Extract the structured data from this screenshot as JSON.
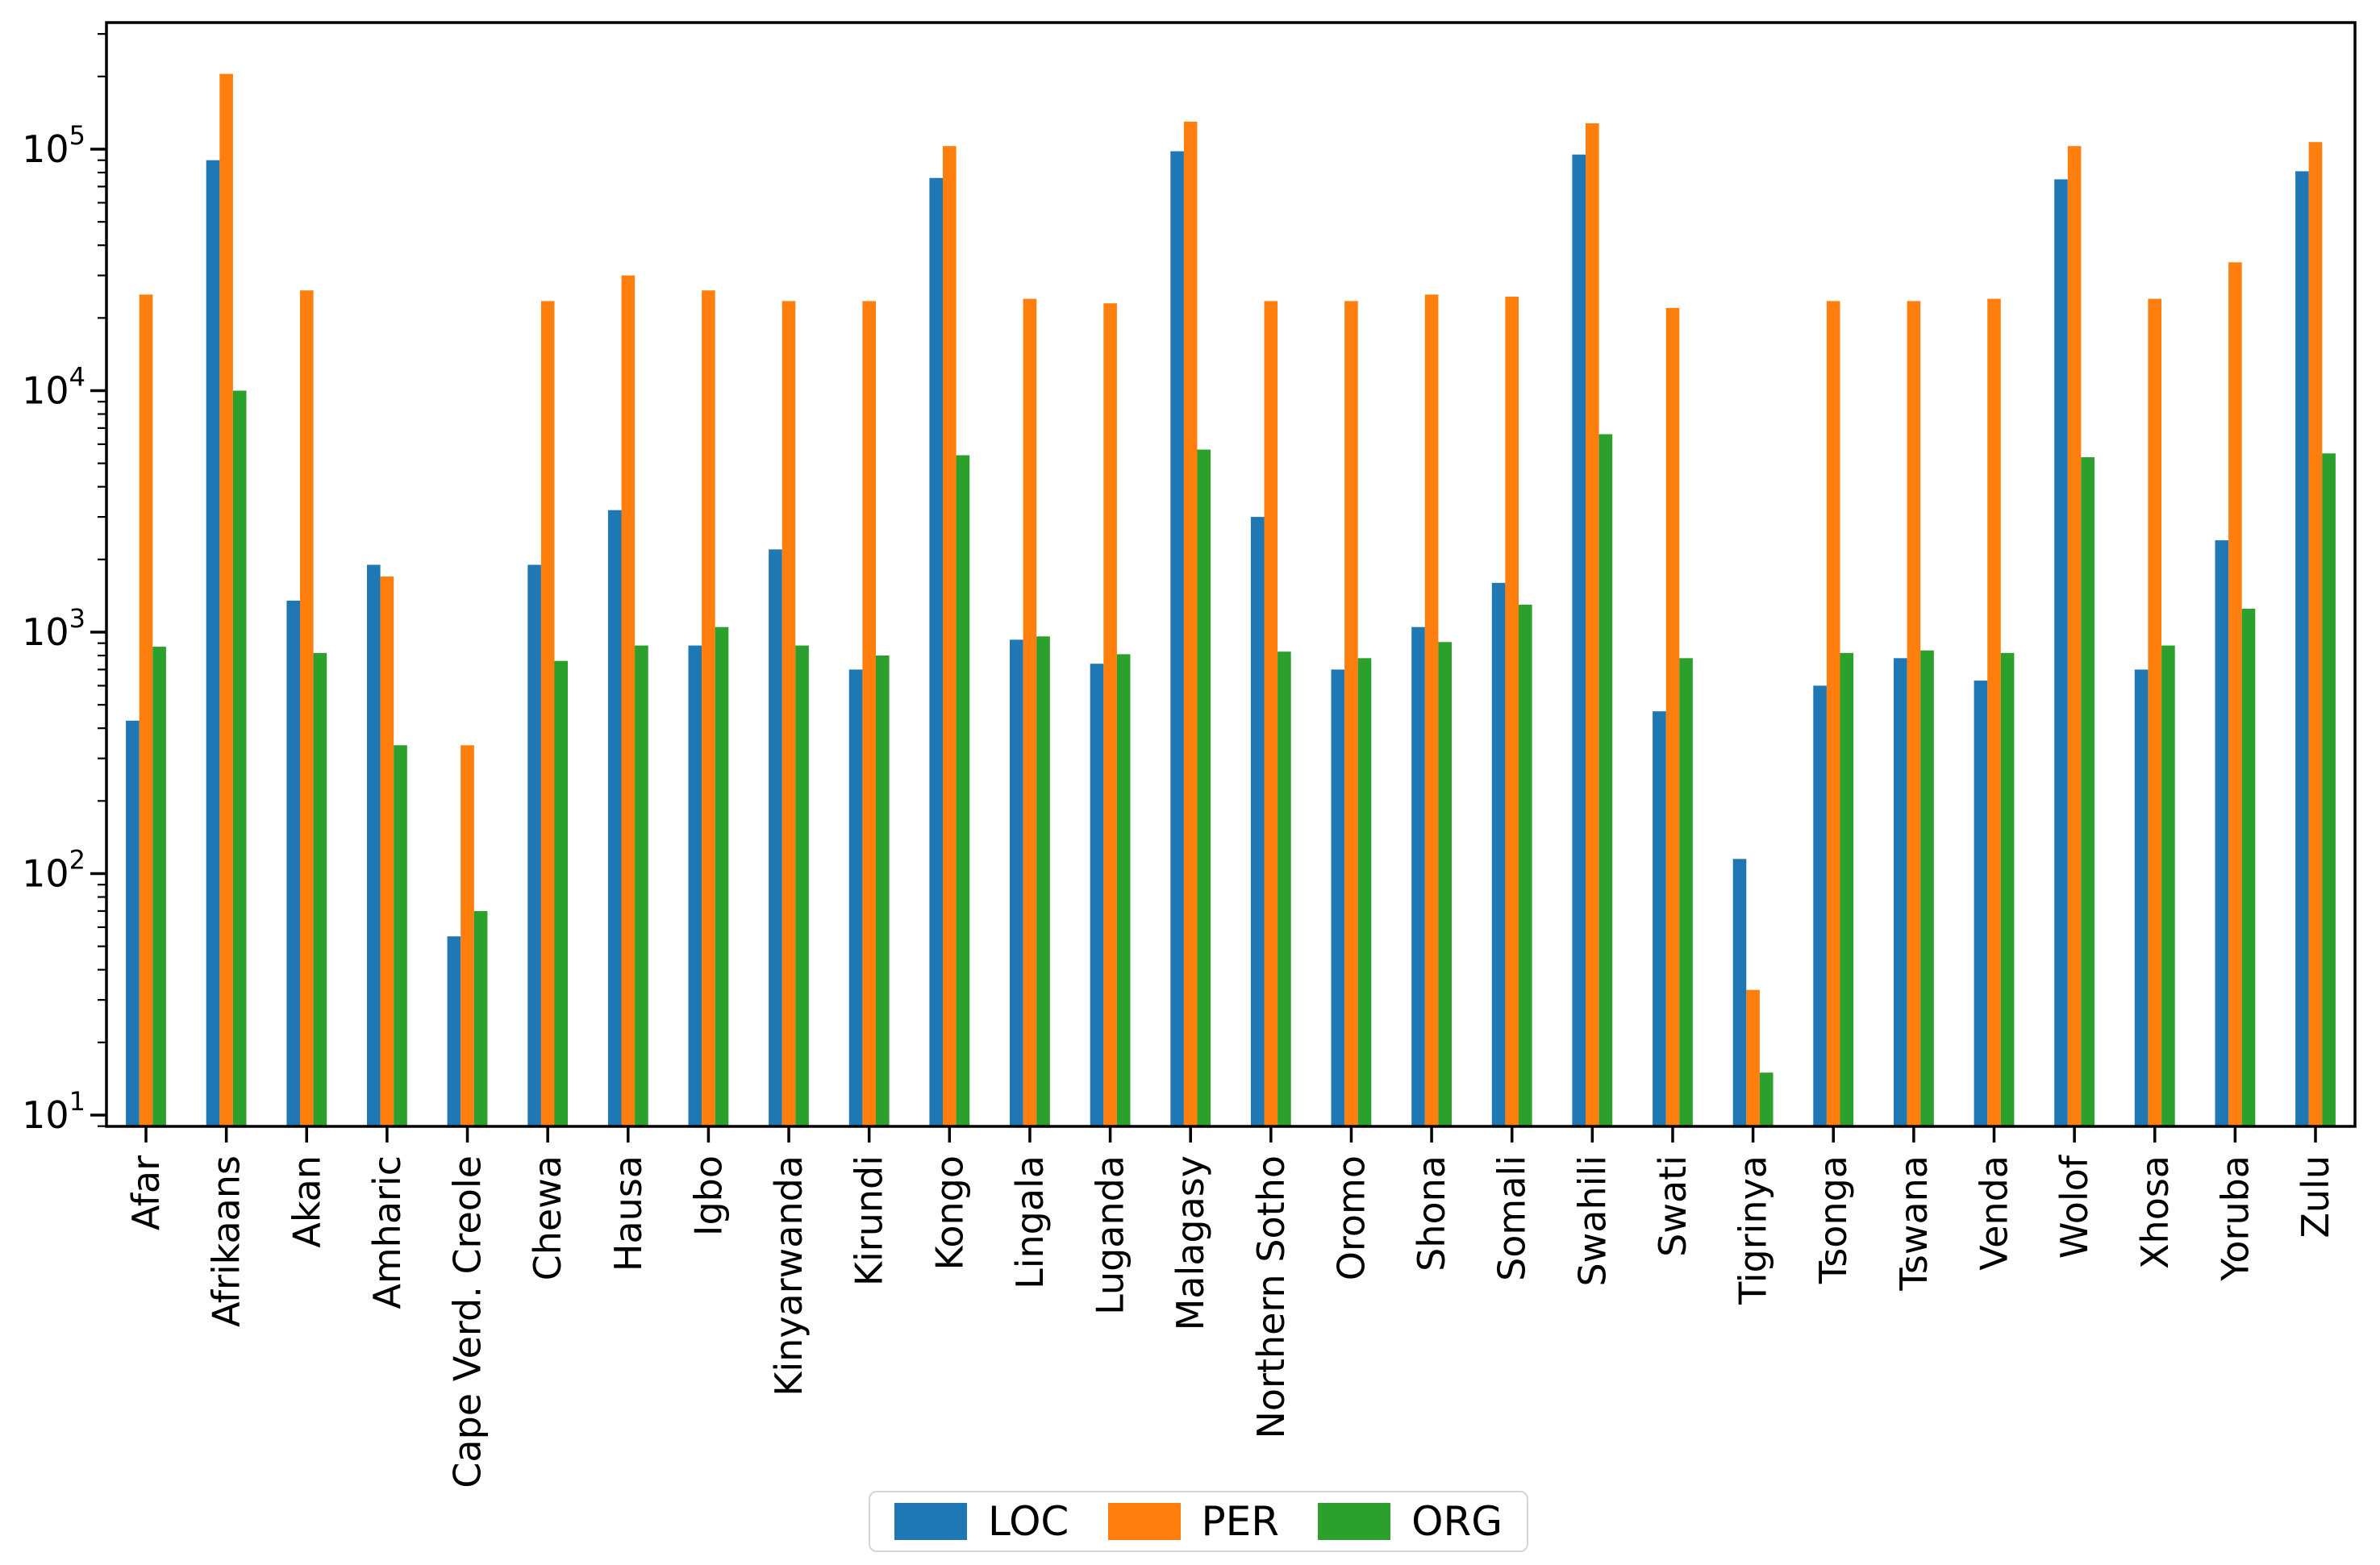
{
  "chart_data": {
    "type": "bar",
    "title": "",
    "xlabel": "",
    "ylabel": "",
    "y_scale": "log",
    "ylim": [
      9,
      334000
    ],
    "grid": false,
    "legend_position": "bottom-center",
    "x_tick_rotation": 90,
    "y_ticks": [
      10,
      100,
      1000,
      10000,
      100000
    ],
    "y_tick_exponents": [
      1,
      2,
      3,
      4,
      5
    ],
    "categories": [
      "Afar",
      "Afrikaans",
      "Akan",
      "Amharic",
      "Cape Verd. Creole",
      "Chewa",
      "Hausa",
      "Igbo",
      "Kinyarwanda",
      "Kirundi",
      "Kongo",
      "Lingala",
      "Luganda",
      "Malagasy",
      "Northern Sotho",
      "Oromo",
      "Shona",
      "Somali",
      "Swahili",
      "Swati",
      "Tigrinya",
      "Tsonga",
      "Tswana",
      "Venda",
      "Wolof",
      "Xhosa",
      "Yoruba",
      "Zulu"
    ],
    "series": [
      {
        "name": "LOC",
        "color": "#1f77b4",
        "values": [
          430,
          90000,
          1350,
          1900,
          55,
          1900,
          3200,
          880,
          2200,
          700,
          76000,
          930,
          740,
          98000,
          3000,
          700,
          1050,
          1600,
          95000,
          470,
          115,
          600,
          780,
          630,
          75000,
          700,
          2400,
          81000
        ]
      },
      {
        "name": "PER",
        "color": "#ff7f0e",
        "values": [
          25000,
          205000,
          26000,
          1700,
          340,
          23500,
          30000,
          26000,
          23500,
          23500,
          103000,
          24000,
          23000,
          130000,
          23500,
          23500,
          25000,
          24500,
          128000,
          22000,
          33,
          23500,
          23500,
          24000,
          103000,
          24000,
          34000,
          107000
        ]
      },
      {
        "name": "ORG",
        "color": "#2ca02c",
        "values": [
          870,
          10000,
          820,
          340,
          70,
          760,
          880,
          1050,
          880,
          800,
          5400,
          960,
          810,
          5700,
          830,
          780,
          910,
          1300,
          6600,
          780,
          15,
          820,
          840,
          820,
          5300,
          880,
          1250,
          5500
        ]
      }
    ]
  }
}
